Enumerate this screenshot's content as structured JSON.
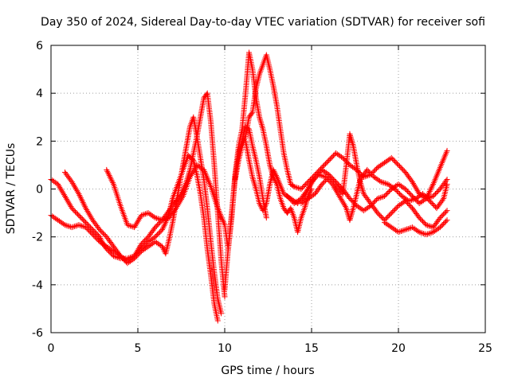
{
  "chart_data": {
    "type": "scatter",
    "title": "Day 350 of 2024, Sidereal Day-to-day VTEC variation (SDTVAR) for receiver sofi",
    "xlabel": "GPS time / hours",
    "ylabel": "SDTVAR / TECUs",
    "xlim": [
      0,
      25
    ],
    "ylim": [
      -6,
      6
    ],
    "xticks": [
      "0",
      "5",
      "10",
      "15",
      "20",
      "25"
    ],
    "yticks": [
      "-6",
      "-4",
      "-2",
      "0",
      "2",
      "4",
      "6"
    ],
    "grid": true,
    "marker": "plus",
    "color": "#ff0000",
    "series": [
      {
        "name": "track-1",
        "points": [
          [
            0,
            0.4
          ],
          [
            0.4,
            0.2
          ],
          [
            0.8,
            -0.3
          ],
          [
            1.2,
            -0.8
          ],
          [
            1.6,
            -1.1
          ],
          [
            2.0,
            -1.4
          ],
          [
            2.4,
            -1.7
          ],
          [
            2.8,
            -2.0
          ],
          [
            3.0,
            -2.3
          ],
          [
            3.2,
            -2.5
          ],
          [
            3.6,
            -2.8
          ],
          [
            4.0,
            -2.9
          ],
          [
            4.4,
            -2.9
          ],
          [
            4.8,
            -2.8
          ],
          [
            5.2,
            -2.5
          ],
          [
            5.6,
            -2.2
          ],
          [
            6.0,
            -2.0
          ],
          [
            6.4,
            -1.7
          ],
          [
            6.6,
            -1.4
          ],
          [
            6.8,
            -1.0
          ],
          [
            7.0,
            -0.4
          ],
          [
            7.3,
            0.2
          ],
          [
            7.6,
            0.8
          ],
          [
            7.9,
            1.4
          ],
          [
            8.2,
            1.2
          ],
          [
            8.4,
            0.6
          ],
          [
            8.6,
            -0.2
          ],
          [
            8.8,
            -1.2
          ],
          [
            9.0,
            -2.5
          ],
          [
            9.2,
            -3.6
          ],
          [
            9.4,
            -4.8
          ],
          [
            9.6,
            -5.5
          ]
        ]
      },
      {
        "name": "track-2",
        "points": [
          [
            0,
            -1.1
          ],
          [
            0.4,
            -1.3
          ],
          [
            0.8,
            -1.5
          ],
          [
            1.2,
            -1.6
          ],
          [
            1.6,
            -1.5
          ],
          [
            2.0,
            -1.6
          ],
          [
            2.4,
            -1.9
          ],
          [
            2.8,
            -2.2
          ],
          [
            3.2,
            -2.4
          ],
          [
            3.6,
            -2.6
          ],
          [
            4.0,
            -2.8
          ],
          [
            4.4,
            -3.0
          ],
          [
            4.8,
            -2.8
          ],
          [
            5.2,
            -2.3
          ],
          [
            5.6,
            -2.0
          ],
          [
            6.0,
            -1.6
          ],
          [
            6.4,
            -1.3
          ],
          [
            6.8,
            -0.9
          ],
          [
            7.2,
            -0.5
          ],
          [
            7.5,
            -0.2
          ],
          [
            7.8,
            0.3
          ],
          [
            8.0,
            0.8
          ],
          [
            8.2,
            1.5
          ],
          [
            8.4,
            2.2
          ],
          [
            8.6,
            3.0
          ],
          [
            8.8,
            3.8
          ],
          [
            9.0,
            4.0
          ],
          [
            9.2,
            2.8
          ],
          [
            9.4,
            1.0
          ],
          [
            9.6,
            -1.0
          ],
          [
            9.8,
            -3.0
          ],
          [
            10.0,
            -4.5
          ]
        ]
      },
      {
        "name": "track-3",
        "points": [
          [
            0.8,
            0.7
          ],
          [
            1.2,
            0.3
          ],
          [
            1.6,
            -0.2
          ],
          [
            2.0,
            -0.8
          ],
          [
            2.4,
            -1.3
          ],
          [
            2.8,
            -1.7
          ],
          [
            3.2,
            -2.0
          ],
          [
            3.6,
            -2.4
          ],
          [
            4.0,
            -2.8
          ],
          [
            4.4,
            -3.1
          ],
          [
            4.8,
            -2.9
          ],
          [
            5.2,
            -2.6
          ],
          [
            5.6,
            -2.4
          ],
          [
            6.0,
            -2.2
          ],
          [
            6.4,
            -2.4
          ],
          [
            6.6,
            -2.7
          ],
          [
            6.8,
            -2.1
          ],
          [
            7.0,
            -1.4
          ],
          [
            7.2,
            -0.6
          ],
          [
            7.4,
            0.2
          ],
          [
            7.6,
            1.0
          ],
          [
            7.8,
            1.8
          ],
          [
            8.0,
            2.6
          ],
          [
            8.2,
            3.0
          ],
          [
            8.4,
            2.2
          ],
          [
            8.6,
            1.3
          ],
          [
            8.8,
            0.4
          ],
          [
            9.0,
            -0.8
          ],
          [
            9.2,
            -2.2
          ],
          [
            9.4,
            -3.5
          ],
          [
            9.6,
            -4.6
          ],
          [
            9.8,
            -5.2
          ]
        ]
      },
      {
        "name": "track-4",
        "points": [
          [
            3.2,
            0.8
          ],
          [
            3.6,
            0.2
          ],
          [
            4.0,
            -0.7
          ],
          [
            4.4,
            -1.5
          ],
          [
            4.8,
            -1.6
          ],
          [
            5.2,
            -1.1
          ],
          [
            5.6,
            -1.0
          ],
          [
            6.0,
            -1.2
          ],
          [
            6.4,
            -1.3
          ],
          [
            6.8,
            -1.2
          ],
          [
            7.2,
            -0.8
          ],
          [
            7.6,
            -0.3
          ],
          [
            8.0,
            0.5
          ],
          [
            8.4,
            1.0
          ],
          [
            8.8,
            0.8
          ],
          [
            9.2,
            0.1
          ],
          [
            9.6,
            -0.8
          ],
          [
            10.0,
            -1.5
          ],
          [
            10.2,
            -2.5
          ],
          [
            10.4,
            -1.2
          ],
          [
            10.6,
            0.5
          ],
          [
            10.8,
            1.5
          ],
          [
            11.0,
            2.0
          ],
          [
            11.2,
            2.6
          ],
          [
            11.4,
            2.5
          ],
          [
            11.6,
            1.8
          ],
          [
            11.8,
            1.2
          ],
          [
            12.0,
            0.5
          ],
          [
            12.2,
            -0.4
          ],
          [
            12.4,
            -1.2
          ]
        ]
      },
      {
        "name": "track-5",
        "points": [
          [
            10.0,
            -4.2
          ],
          [
            10.2,
            -2.5
          ],
          [
            10.4,
            -1.0
          ],
          [
            10.6,
            0.6
          ],
          [
            10.8,
            1.8
          ],
          [
            11.0,
            2.5
          ],
          [
            11.2,
            4.0
          ],
          [
            11.4,
            5.7
          ],
          [
            11.6,
            5.0
          ],
          [
            11.8,
            3.8
          ],
          [
            12.0,
            3.0
          ],
          [
            12.2,
            2.5
          ],
          [
            12.4,
            1.8
          ],
          [
            12.6,
            1.0
          ],
          [
            12.8,
            0.5
          ],
          [
            13.0,
            0.2
          ],
          [
            13.2,
            -0.4
          ],
          [
            13.4,
            -0.8
          ],
          [
            13.6,
            -1.0
          ],
          [
            13.8,
            -0.8
          ],
          [
            14.0,
            -1.2
          ],
          [
            14.2,
            -1.8
          ],
          [
            14.4,
            -1.2
          ],
          [
            14.6,
            -0.8
          ],
          [
            14.8,
            -0.3
          ],
          [
            15.0,
            0.0
          ]
        ]
      },
      {
        "name": "track-6",
        "points": [
          [
            10.6,
            0.4
          ],
          [
            10.8,
            1.2
          ],
          [
            11.0,
            1.8
          ],
          [
            11.2,
            2.2
          ],
          [
            11.4,
            3.0
          ],
          [
            11.6,
            3.2
          ],
          [
            11.8,
            4.2
          ],
          [
            12.0,
            4.8
          ],
          [
            12.2,
            5.2
          ],
          [
            12.4,
            5.6
          ],
          [
            12.6,
            5.0
          ],
          [
            12.8,
            4.3
          ],
          [
            13.0,
            3.5
          ],
          [
            13.2,
            2.5
          ],
          [
            13.4,
            1.5
          ],
          [
            13.6,
            0.8
          ],
          [
            13.8,
            0.2
          ],
          [
            14.0,
            0.1
          ],
          [
            14.4,
            0.0
          ],
          [
            14.8,
            0.3
          ],
          [
            15.2,
            0.6
          ],
          [
            15.6,
            0.9
          ],
          [
            16.0,
            1.2
          ],
          [
            16.4,
            1.5
          ],
          [
            16.8,
            1.3
          ],
          [
            17.2,
            1.0
          ],
          [
            17.6,
            0.8
          ],
          [
            18.0,
            0.5
          ],
          [
            18.4,
            0.6
          ],
          [
            18.8,
            0.9
          ],
          [
            19.2,
            1.1
          ],
          [
            19.6,
            1.3
          ],
          [
            20.0,
            1.0
          ],
          [
            20.4,
            0.7
          ],
          [
            20.8,
            0.3
          ],
          [
            21.2,
            -0.2
          ],
          [
            21.6,
            -0.4
          ],
          [
            22.0,
            -0.3
          ],
          [
            22.4,
            0.0
          ],
          [
            22.8,
            0.4
          ]
        ]
      },
      {
        "name": "track-7",
        "points": [
          [
            11.2,
            2.0
          ],
          [
            11.4,
            1.2
          ],
          [
            11.6,
            0.5
          ],
          [
            11.8,
            0.0
          ],
          [
            12.0,
            -0.6
          ],
          [
            12.2,
            -0.9
          ],
          [
            12.4,
            -0.6
          ],
          [
            12.6,
            0.2
          ],
          [
            12.8,
            0.8
          ],
          [
            13.0,
            0.5
          ],
          [
            13.4,
            -0.2
          ],
          [
            13.8,
            -0.4
          ],
          [
            14.2,
            -0.6
          ],
          [
            14.6,
            -0.3
          ],
          [
            15.0,
            0.3
          ],
          [
            15.4,
            0.6
          ],
          [
            15.8,
            0.5
          ],
          [
            16.2,
            0.2
          ],
          [
            16.6,
            -0.3
          ],
          [
            17.0,
            -0.8
          ],
          [
            17.2,
            -1.3
          ],
          [
            17.4,
            -0.8
          ],
          [
            17.6,
            -0.2
          ],
          [
            17.8,
            0.4
          ],
          [
            18.2,
            0.8
          ],
          [
            18.6,
            0.5
          ],
          [
            19.0,
            0.3
          ],
          [
            19.4,
            0.2
          ],
          [
            19.8,
            0.0
          ],
          [
            20.2,
            -0.3
          ],
          [
            20.6,
            -0.5
          ],
          [
            21.0,
            -0.4
          ],
          [
            21.4,
            -0.2
          ],
          [
            21.8,
            -0.5
          ],
          [
            22.2,
            -0.8
          ],
          [
            22.6,
            -0.4
          ],
          [
            22.8,
            0.2
          ]
        ]
      },
      {
        "name": "track-8",
        "points": [
          [
            14.4,
            -0.6
          ],
          [
            14.8,
            -0.4
          ],
          [
            15.2,
            -0.2
          ],
          [
            15.6,
            0.2
          ],
          [
            16.0,
            0.5
          ],
          [
            16.4,
            0.2
          ],
          [
            16.8,
            -0.2
          ],
          [
            17.0,
            1.0
          ],
          [
            17.2,
            2.3
          ],
          [
            17.4,
            1.8
          ],
          [
            17.6,
            1.0
          ],
          [
            17.8,
            0.3
          ],
          [
            18.0,
            -0.2
          ],
          [
            18.4,
            -0.6
          ],
          [
            18.8,
            -1.0
          ],
          [
            19.2,
            -1.3
          ],
          [
            19.6,
            -1.0
          ],
          [
            20.0,
            -0.7
          ],
          [
            20.4,
            -0.5
          ],
          [
            20.8,
            -0.8
          ],
          [
            21.2,
            -1.2
          ],
          [
            21.6,
            -1.5
          ],
          [
            22.0,
            -1.6
          ],
          [
            22.4,
            -1.2
          ],
          [
            22.8,
            -0.9
          ]
        ]
      },
      {
        "name": "track-9",
        "points": [
          [
            13.6,
            -0.3
          ],
          [
            14.0,
            -0.6
          ],
          [
            14.4,
            -0.4
          ],
          [
            14.8,
            0.0
          ],
          [
            15.2,
            0.5
          ],
          [
            15.6,
            0.8
          ],
          [
            16.0,
            0.6
          ],
          [
            16.4,
            0.3
          ],
          [
            16.8,
            0.0
          ],
          [
            17.2,
            -0.4
          ],
          [
            17.6,
            -0.7
          ],
          [
            18.0,
            -0.9
          ],
          [
            18.4,
            -0.7
          ],
          [
            18.8,
            -0.4
          ],
          [
            19.2,
            -0.3
          ],
          [
            19.6,
            0.0
          ],
          [
            20.0,
            0.2
          ],
          [
            20.4,
            0.0
          ],
          [
            20.8,
            -0.3
          ],
          [
            21.2,
            -0.6
          ],
          [
            21.6,
            -0.4
          ],
          [
            22.0,
            0.2
          ],
          [
            22.4,
            0.9
          ],
          [
            22.8,
            1.6
          ]
        ]
      },
      {
        "name": "track-10",
        "points": [
          [
            19.2,
            -1.4
          ],
          [
            19.6,
            -1.6
          ],
          [
            20.0,
            -1.8
          ],
          [
            20.4,
            -1.7
          ],
          [
            20.8,
            -1.6
          ],
          [
            21.2,
            -1.8
          ],
          [
            21.6,
            -1.9
          ],
          [
            22.0,
            -1.8
          ],
          [
            22.4,
            -1.6
          ],
          [
            22.8,
            -1.3
          ]
        ]
      }
    ]
  }
}
